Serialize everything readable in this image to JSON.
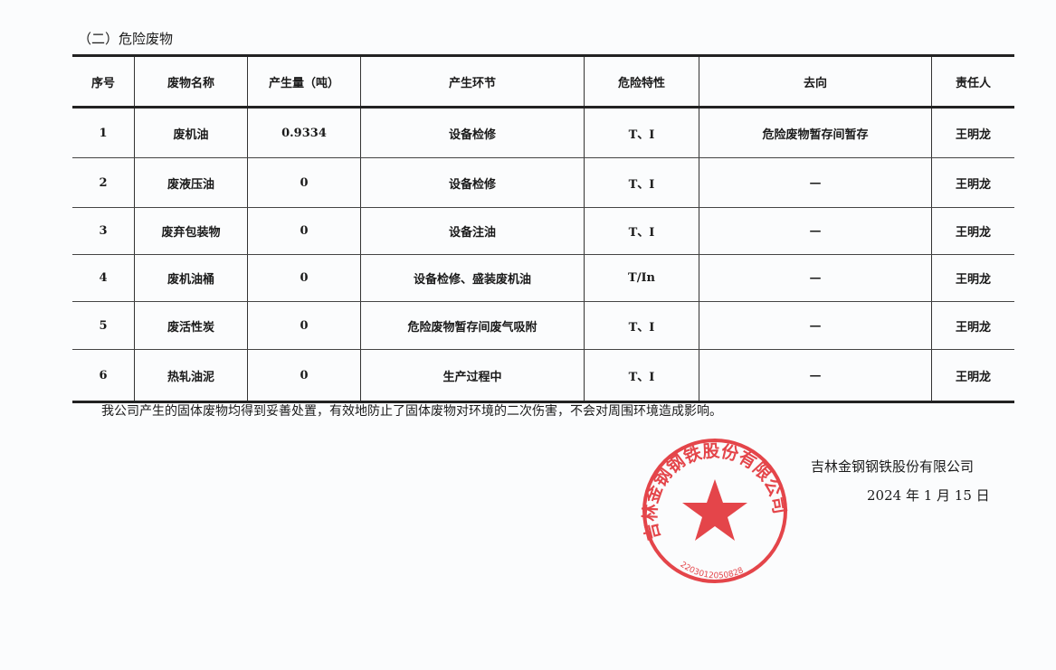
{
  "section_title": "（二）危险废物",
  "table": {
    "headers": [
      "序号",
      "废物名称",
      "产生量（吨）",
      "产生环节",
      "危险特性",
      "去向",
      "责任人"
    ],
    "rows": [
      [
        "1",
        "废机油",
        "0.9334",
        "设备检修",
        "T、I",
        "危险废物暂存间暂存",
        "王明龙"
      ],
      [
        "2",
        "废液压油",
        "0",
        "设备检修",
        "T、I",
        "—",
        "王明龙"
      ],
      [
        "3",
        "废弃包装物",
        "0",
        "设备注油",
        "T、I",
        "—",
        "王明龙"
      ],
      [
        "4",
        "废机油桶",
        "0",
        "设备检修、盛装废机油",
        "T/In",
        "—",
        "王明龙"
      ],
      [
        "5",
        "废活性炭",
        "0",
        "危险废物暂存间废气吸附",
        "T、I",
        "—",
        "王明龙"
      ],
      [
        "6",
        "热轧油泥",
        "0",
        "生产过程中",
        "T、I",
        "—",
        "王明龙"
      ]
    ]
  },
  "note": "我公司产生的固体废物均得到妥善处置，有效地防止了固体废物对环境的二次伤害，不会对周围环境造成影响。",
  "signature": {
    "company": "吉林金钢钢铁股份有限公司",
    "date": "2024 年 1 月 15 日"
  },
  "stamp": {
    "text": "吉林金钢钢铁股份有限公司",
    "number": "2203012050828",
    "color": "#e0262b"
  }
}
